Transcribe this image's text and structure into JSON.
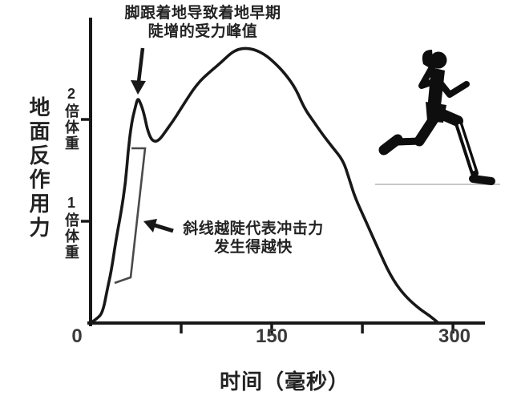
{
  "figure": {
    "colors": {
      "background": "#ffffff",
      "ink": "#181818",
      "annotation_text": "#232323",
      "tick_text": "#3a3a3a",
      "bracket": "#4a4a4a",
      "runner": "#0e0e0e",
      "ground_line": "#c8c8c8",
      "shin_highlight": "#ffffff"
    },
    "icons": [
      {
        "name": "runner-silhouette-icon",
        "meaning": "female runner black silhouette, heel striking, white impact line along front shin"
      }
    ]
  },
  "chart_data": {
    "type": "line",
    "title": "",
    "xlabel": "时间（毫秒）",
    "ylabel": "地面反作用力",
    "y_unit": "倍体重",
    "xlim": [
      0,
      325
    ],
    "ylim": [
      0,
      2.95
    ],
    "grid": "off",
    "x_ticks": [
      {
        "value": 0,
        "label": "0"
      },
      {
        "value": 75,
        "label": ""
      },
      {
        "value": 150,
        "label": "150"
      },
      {
        "value": 225,
        "label": ""
      },
      {
        "value": 300,
        "label": "300"
      }
    ],
    "y_ticks": [
      {
        "value": 2,
        "label": "2倍体重"
      },
      {
        "value": 1,
        "label": "1倍体重"
      }
    ],
    "annotations": [
      {
        "id": "impact-peak",
        "lines": [
          "脚跟着地导致着地早期",
          "陡增的受力峰值"
        ],
        "points_at": "first sharp peak ~2.2x bodyweight at ~40 ms"
      },
      {
        "id": "slope",
        "lines": [
          "斜线越陡代表冲击力",
          "发生得越快"
        ],
        "points_at": "bracket along steep initial rise of curve"
      }
    ],
    "series": [
      {
        "name": "vertical-ground-reaction-force",
        "x_unit": "ms",
        "y_unit": "bodyweight-multiples",
        "points": [
          [
            0,
            0
          ],
          [
            5,
            0.04
          ],
          [
            10,
            0.1
          ],
          [
            14,
            0.34
          ],
          [
            17,
            0.5
          ],
          [
            21,
            0.81
          ],
          [
            25,
            1.07
          ],
          [
            29,
            1.38
          ],
          [
            31,
            1.68
          ],
          [
            34,
            1.97
          ],
          [
            37,
            2.12
          ],
          [
            39,
            2.21
          ],
          [
            41,
            2.17
          ],
          [
            44,
            2.07
          ],
          [
            47,
            1.9
          ],
          [
            50,
            1.81
          ],
          [
            53,
            1.78
          ],
          [
            57,
            1.8
          ],
          [
            62,
            1.88
          ],
          [
            68,
            1.98
          ],
          [
            75,
            2.11
          ],
          [
            88,
            2.35
          ],
          [
            100,
            2.48
          ],
          [
            108,
            2.56
          ],
          [
            116,
            2.65
          ],
          [
            122,
            2.69
          ],
          [
            128,
            2.7
          ],
          [
            135,
            2.69
          ],
          [
            144,
            2.64
          ],
          [
            152,
            2.56
          ],
          [
            161,
            2.45
          ],
          [
            170,
            2.3
          ],
          [
            177,
            2.11
          ],
          [
            184,
            1.99
          ],
          [
            191,
            1.87
          ],
          [
            200,
            1.73
          ],
          [
            209,
            1.6
          ],
          [
            214,
            1.42
          ],
          [
            219,
            1.23
          ],
          [
            229,
            0.97
          ],
          [
            238,
            0.73
          ],
          [
            248,
            0.47
          ],
          [
            259,
            0.28
          ],
          [
            272,
            0.14
          ],
          [
            281,
            0.07
          ],
          [
            288,
            0
          ]
        ]
      }
    ],
    "key_features": {
      "impact_transient_peak": {
        "t_ms": 39,
        "force_bw": 2.2
      },
      "trough": {
        "t_ms": 53,
        "force_bw": 1.78
      },
      "active_peak": {
        "t_ms": 128,
        "force_bw": 2.7
      },
      "stance_end_ms": 288
    }
  }
}
